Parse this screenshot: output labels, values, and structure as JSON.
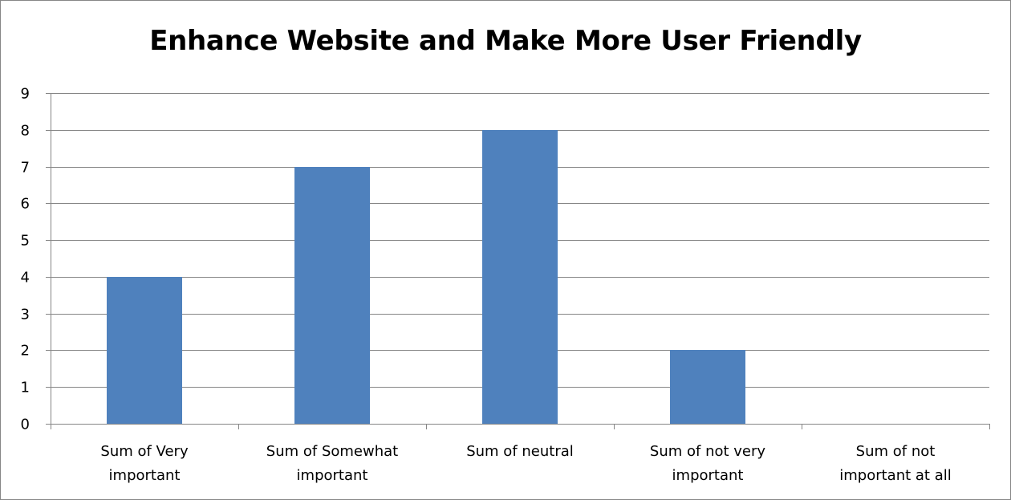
{
  "chart_data": {
    "type": "bar",
    "title": "Enhance Website and Make More User Friendly",
    "categories": [
      "Sum of Very important",
      "Sum of Somewhat important",
      "Sum of neutral",
      "Sum of not very important",
      "Sum of not important at all"
    ],
    "category_label_lines": [
      [
        "Sum of Very",
        "important"
      ],
      [
        "Sum of Somewhat",
        "important"
      ],
      [
        "Sum of neutral"
      ],
      [
        "Sum of not very",
        "important"
      ],
      [
        "Sum of not",
        "important at all"
      ]
    ],
    "values": [
      4,
      7,
      8,
      2,
      0
    ],
    "ylim": [
      0,
      9
    ],
    "yticks": [
      0,
      1,
      2,
      3,
      4,
      5,
      6,
      7,
      8,
      9
    ],
    "grid": true,
    "legend": "none",
    "xlabel": "",
    "ylabel": "",
    "colors": {
      "bar": "#4f81bd",
      "grid": "#868686",
      "text": "#000000"
    }
  }
}
